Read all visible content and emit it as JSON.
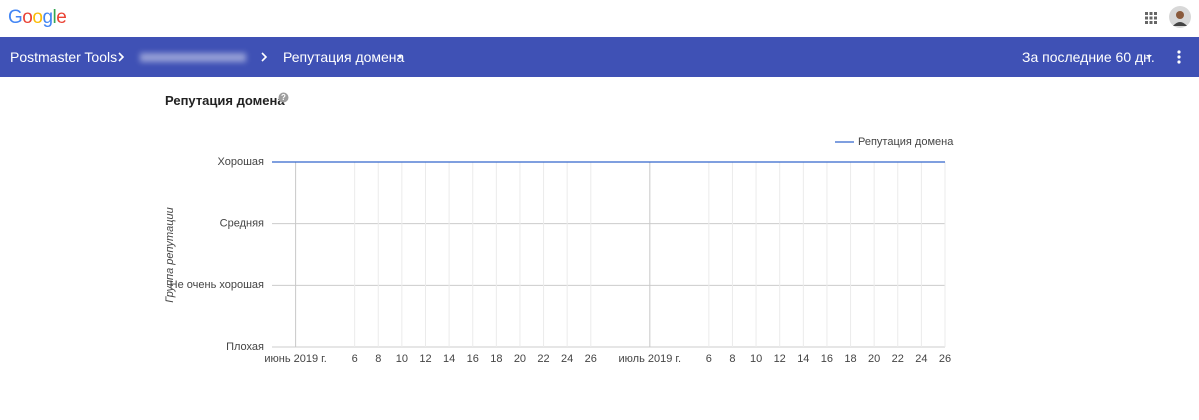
{
  "header": {
    "logo": "Google"
  },
  "nav": {
    "product": "Postmaster Tools",
    "page": "Репутация домена",
    "period": "За последние 60 дн."
  },
  "chart_data": {
    "type": "line",
    "title": "Репутация домена",
    "y_label": "Группа репутации",
    "x": [
      -1,
      56
    ],
    "series": [
      {
        "name": "Репутация домена",
        "color": "#3366cc",
        "values": [
          3,
          3
        ]
      }
    ],
    "xlim": [
      -1,
      56
    ],
    "xticks": [
      {
        "value": 1,
        "label": "июнь 2019 г."
      },
      6,
      8,
      10,
      12,
      14,
      16,
      18,
      20,
      22,
      24,
      26,
      {
        "value": 31,
        "label": "июль 2019 г."
      },
      {
        "value": 36,
        "label": "6"
      },
      {
        "value": 38,
        "label": "8"
      },
      {
        "value": 40,
        "label": "10"
      },
      {
        "value": 42,
        "label": "12"
      },
      {
        "value": 44,
        "label": "14"
      },
      {
        "value": 46,
        "label": "16"
      },
      {
        "value": 48,
        "label": "18"
      },
      {
        "value": 50,
        "label": "20"
      },
      {
        "value": 52,
        "label": "22"
      },
      {
        "value": 54,
        "label": "24"
      },
      {
        "value": 56,
        "label": "26"
      }
    ],
    "ylim": [
      0,
      3
    ],
    "yticks": [
      {
        "value": 0,
        "label": "Плохая"
      },
      {
        "value": 1,
        "label": "Не очень хорошая"
      },
      {
        "value": 2,
        "label": "Средняя"
      },
      {
        "value": 3,
        "label": "Хорошая"
      }
    ],
    "grid": true,
    "legend": "top-right"
  }
}
